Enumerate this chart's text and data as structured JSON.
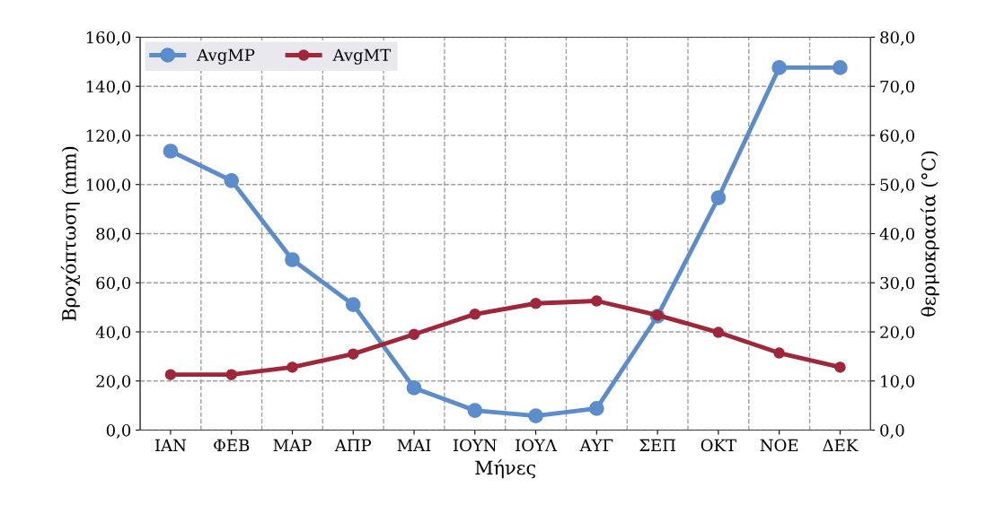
{
  "chart_data": {
    "type": "line",
    "xlabel": "Μήνες",
    "ylabel": "Βροχόπτωση (mm)",
    "y2label": "θερμοκρασία (°C)",
    "categories": [
      "ΙΑΝ",
      "ΦΕΒ",
      "ΜΑΡ",
      "ΑΠΡ",
      "ΜΑΙ",
      "ΙΟΥΝ",
      "ΙΟΥΛ",
      "ΑΥΓ",
      "ΣΕΠ",
      "ΟΚΤ",
      "ΝΟΕ",
      "ΔΕΚ"
    ],
    "series": [
      {
        "name": "AvgMP",
        "color": "#5b8ccb",
        "values": [
          113.6,
          101.6,
          69.4,
          51.1,
          17.2,
          8.0,
          5.8,
          8.8,
          46.4,
          94.6,
          147.6,
          147.6
        ]
      },
      {
        "name": "AvgMT",
        "color": "#a0263a",
        "axis": "y2",
        "values": [
          11.3,
          11.3,
          12.8,
          15.5,
          19.5,
          23.6,
          25.8,
          26.3,
          23.4,
          19.9,
          15.7,
          12.8
        ]
      }
    ],
    "ylim": [
      0,
      160
    ],
    "yticks": [
      {
        "value": 0,
        "label": "0,0"
      },
      {
        "value": 20,
        "label": "20,0"
      },
      {
        "value": 40,
        "label": "40,0"
      },
      {
        "value": 60,
        "label": "60,0"
      },
      {
        "value": 80,
        "label": "80,0"
      },
      {
        "value": 100,
        "label": "100,0"
      },
      {
        "value": 120,
        "label": "120,0"
      },
      {
        "value": 140,
        "label": "140,0"
      },
      {
        "value": 160,
        "label": "160,0"
      }
    ],
    "y2lim": [
      0,
      80
    ],
    "y2ticks": [
      {
        "value": 0,
        "label": "0,0"
      },
      {
        "value": 10,
        "label": "10,0"
      },
      {
        "value": 20,
        "label": "20,0"
      },
      {
        "value": 30,
        "label": "30,0"
      },
      {
        "value": 40,
        "label": "40,0"
      },
      {
        "value": 50,
        "label": "50,0"
      },
      {
        "value": 60,
        "label": "60,0"
      },
      {
        "value": 70,
        "label": "70,0"
      },
      {
        "value": 80,
        "label": "80,0"
      }
    ],
    "grid": true,
    "legend": "top left",
    "marker": "circle",
    "line_style": "solid"
  }
}
